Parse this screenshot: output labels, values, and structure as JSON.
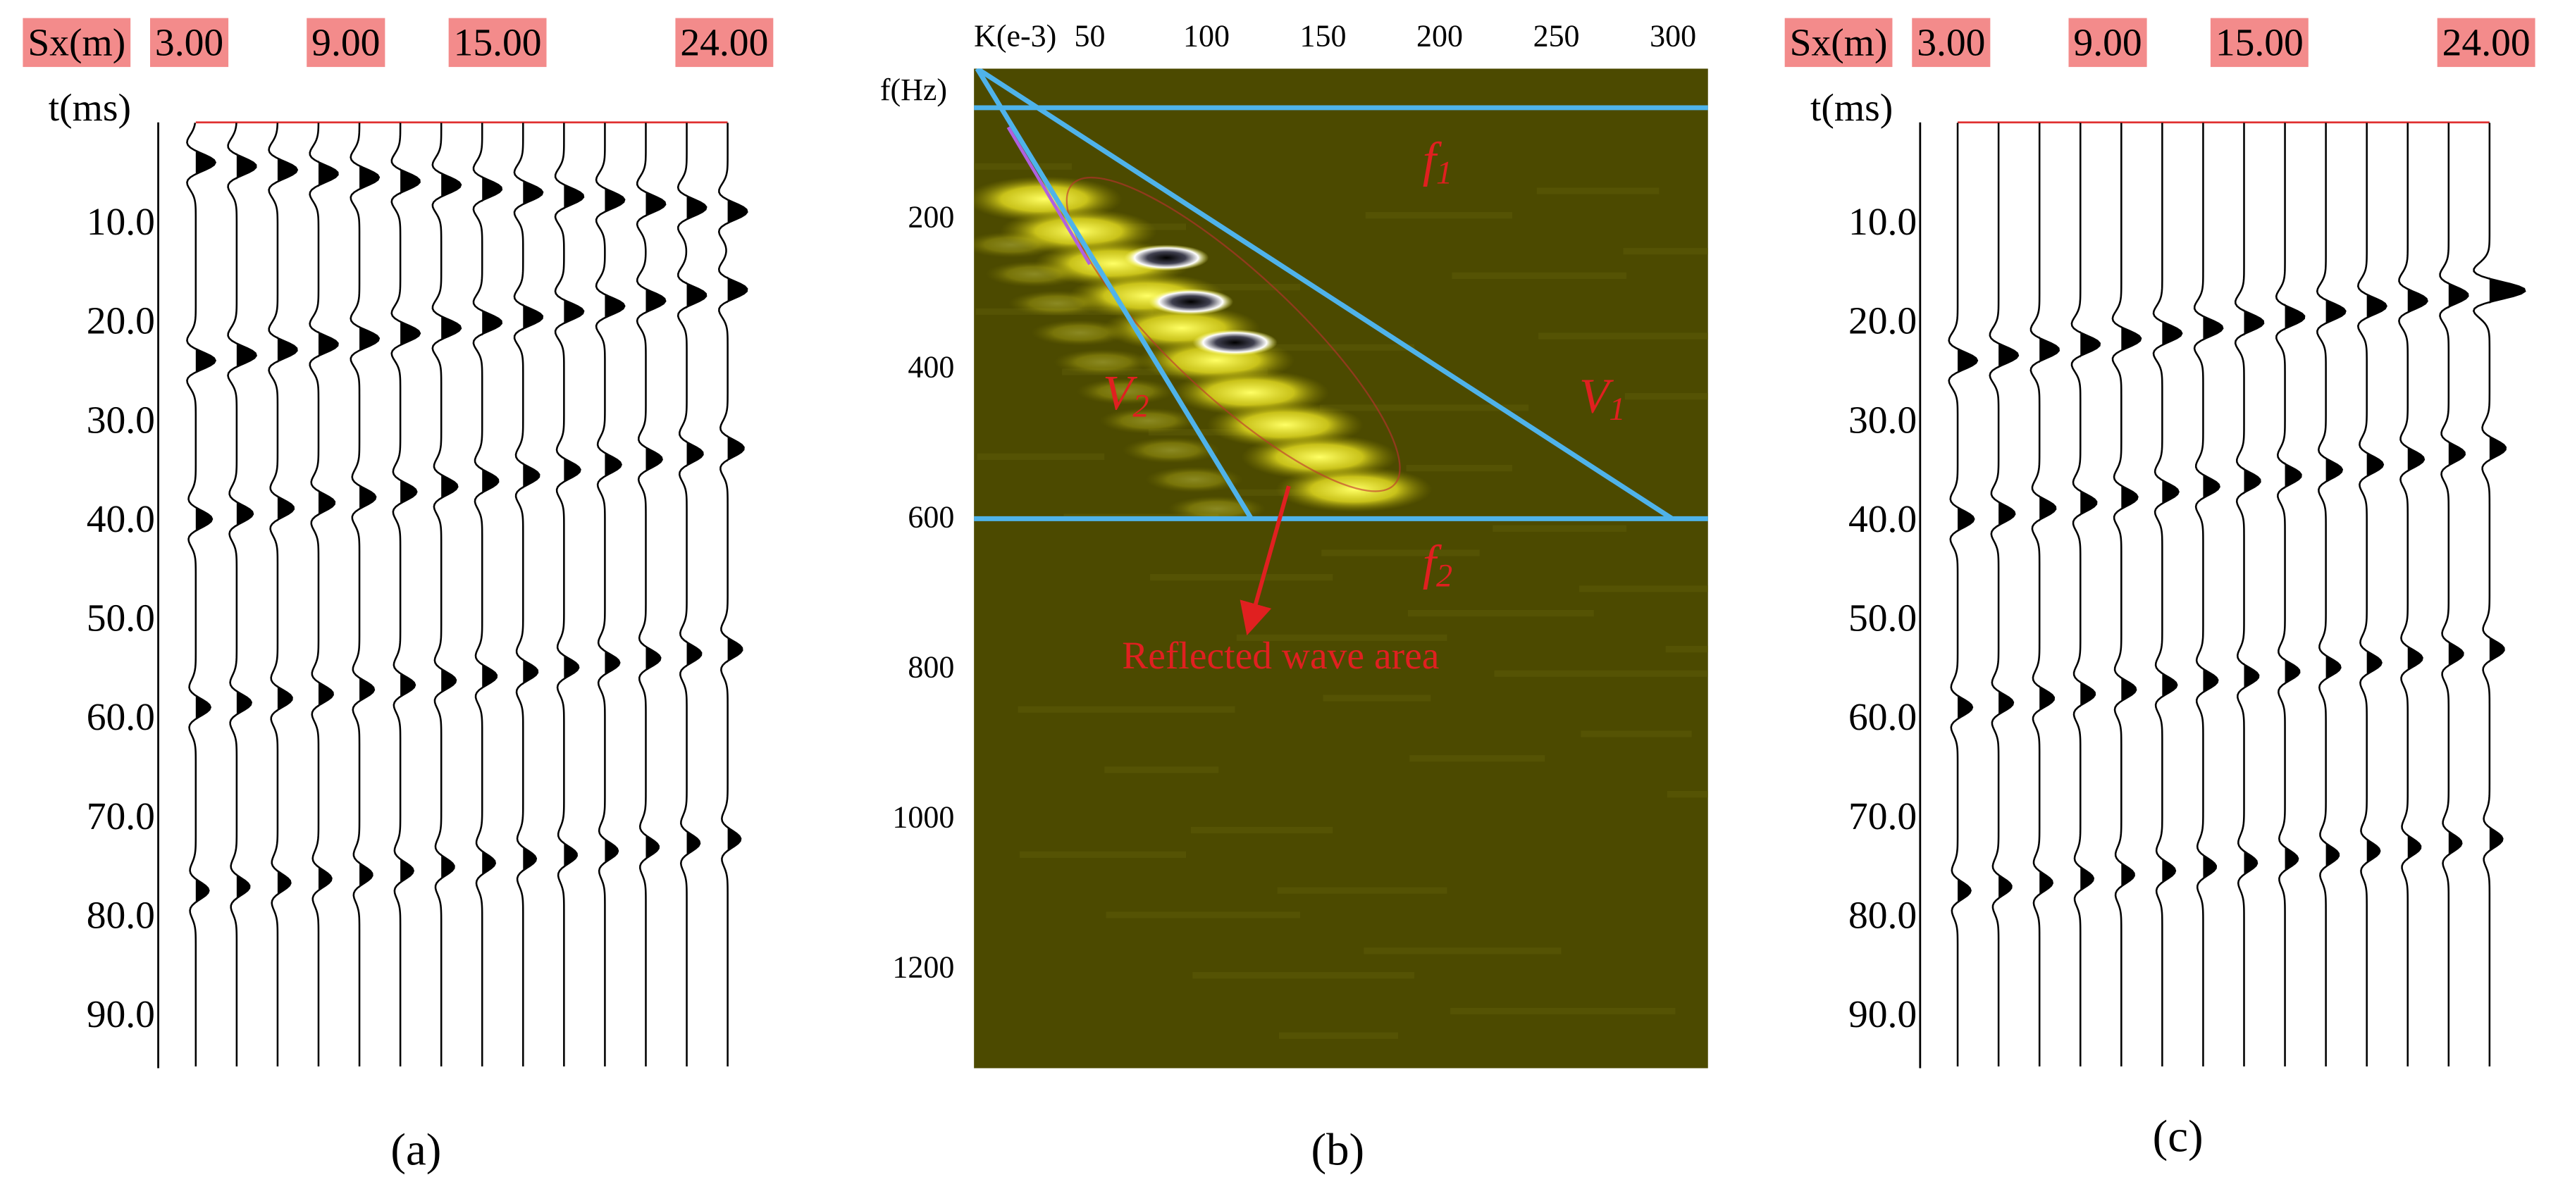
{
  "panels": [
    {
      "header": "Sx(m)",
      "x_labels": [
        "3.00",
        "9.00",
        "15.00",
        "24.00"
      ],
      "y_title": "t(ms)",
      "y_labels": [
        "10.0",
        "20.0",
        "30.0",
        "40.0",
        "50.0",
        "60.0",
        "70.0",
        "80.0",
        "90.0"
      ],
      "caption": "(a)"
    },
    {
      "x_title": "K(e-3)",
      "x_labels": [
        "50",
        "100",
        "150",
        "200",
        "250",
        "300"
      ],
      "y_title": "f(Hz)",
      "y_labels": [
        "200",
        "400",
        "600",
        "800",
        "1000",
        "1200"
      ],
      "annotations": [
        {
          "symbol": "f",
          "subscript": "1"
        },
        {
          "symbol": "f",
          "subscript": "2"
        },
        {
          "symbol": "V",
          "subscript": "1"
        },
        {
          "symbol": "V",
          "subscript": "2"
        }
      ],
      "arrow_label": "Reflected wave area",
      "caption": "(b)"
    },
    {
      "header": "Sx(m)",
      "x_labels": [
        "3.00",
        "9.00",
        "15.00",
        "24.00"
      ],
      "y_title": "t(ms)",
      "y_labels": [
        "10.0",
        "20.0",
        "30.0",
        "40.0",
        "50.0",
        "60.0",
        "70.0",
        "80.0",
        "90.0"
      ],
      "caption": "(c)"
    }
  ]
}
